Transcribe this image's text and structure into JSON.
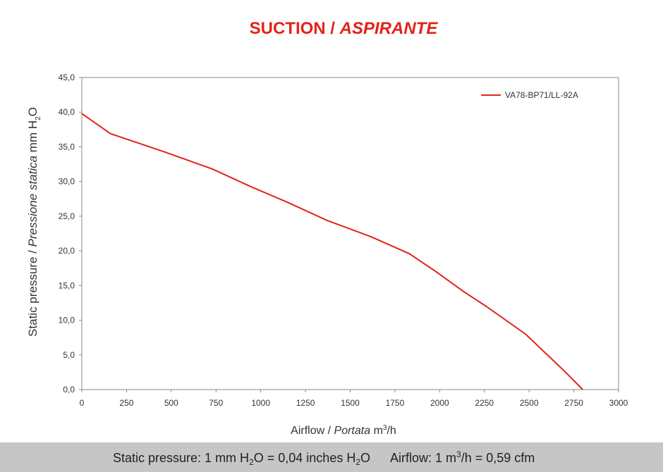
{
  "chart_data": {
    "type": "line",
    "title": "SUCTION /",
    "title_italic": "ASPIRANTE",
    "x_label": "Airflow /",
    "x_label_italic": "Portata",
    "x_label_unit": [
      "m",
      "3",
      "/h"
    ],
    "y_label": "Static pressure /",
    "y_label_italic": "Pressione statica",
    "y_label_unit": [
      "mm H",
      "2",
      "O"
    ],
    "x": [
      0,
      160,
      470,
      730,
      950,
      1150,
      1370,
      1620,
      1830,
      1980,
      2130,
      2260,
      2480,
      2700,
      2800
    ],
    "series": [
      {
        "name": "VA78-BP71/LL-92A",
        "color": "#e2231a",
        "values": [
          39.8,
          36.9,
          34.2,
          31.8,
          29.2,
          27.0,
          24.4,
          22.0,
          19.6,
          17.0,
          14.2,
          12.0,
          8.0,
          2.6,
          0
        ]
      }
    ],
    "xlim": [
      0,
      3000
    ],
    "xticks": [
      0,
      250,
      500,
      750,
      1000,
      1250,
      1500,
      1750,
      2000,
      2250,
      2500,
      2750,
      3000
    ],
    "ylim": [
      0,
      45
    ],
    "yticks": [
      {
        "value": 0,
        "label": "0,0"
      },
      {
        "value": 5,
        "label": "5,0"
      },
      {
        "value": 10,
        "label": "10,0"
      },
      {
        "value": 15,
        "label": "15,0"
      },
      {
        "value": 20,
        "label": "20,0"
      },
      {
        "value": 25,
        "label": "25,0"
      },
      {
        "value": 30,
        "label": "30,0"
      },
      {
        "value": 35,
        "label": "35,0"
      },
      {
        "value": 40,
        "label": "40,0"
      },
      {
        "value": 45,
        "label": "45,0"
      }
    ],
    "grid": false,
    "legend": "upper right"
  },
  "footer": {
    "pressure": [
      "Static pressure: 1 mm H",
      "2",
      "O = 0,04 inches H",
      "2",
      "O"
    ],
    "airflow": [
      "Airflow: 1 m",
      "3",
      "/h = 0,59 cfm"
    ]
  }
}
